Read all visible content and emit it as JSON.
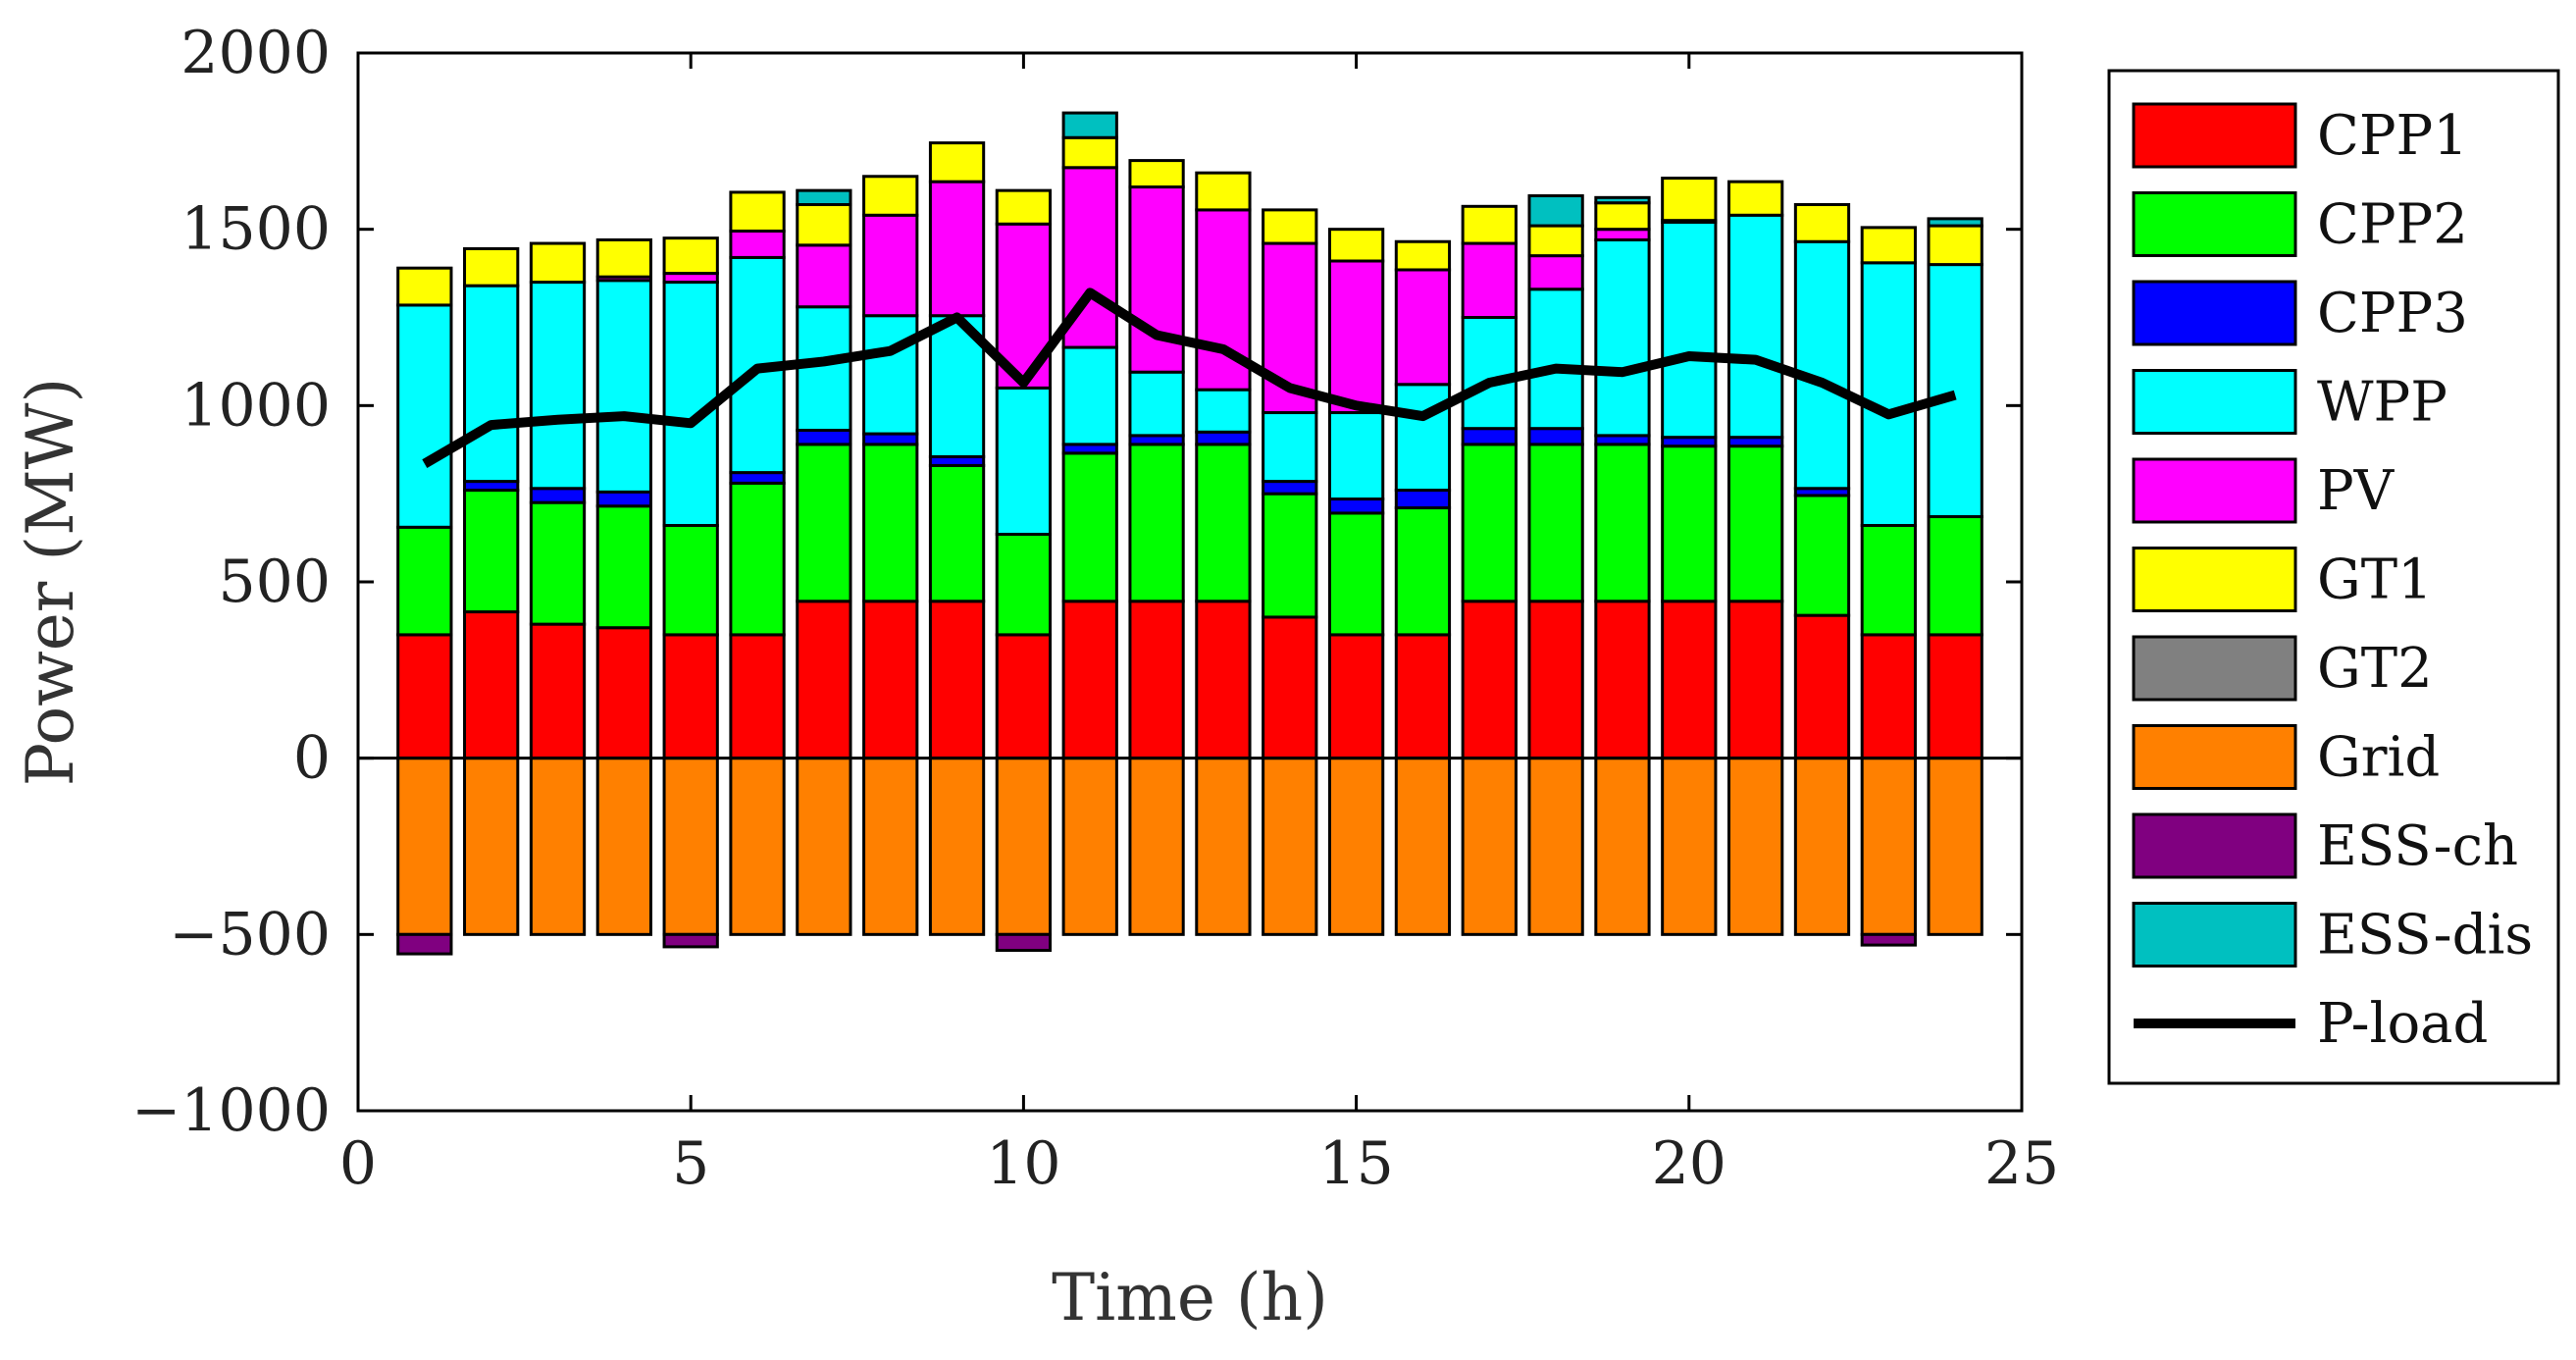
{
  "chart_data": {
    "type": "bar",
    "stacked": true,
    "title": "",
    "xlabel": "Time (h)",
    "ylabel": "Power (MW)",
    "xlim": [
      0,
      25
    ],
    "ylim": [
      -1000,
      2000
    ],
    "xticks": [
      "0",
      "5",
      "10",
      "15",
      "20",
      "25"
    ],
    "yticks": [
      "−1000",
      "−500",
      "0",
      "500",
      "1000",
      "1500",
      "2000"
    ],
    "legend_position": "outside-right",
    "categories": [
      1,
      2,
      3,
      4,
      5,
      6,
      7,
      8,
      9,
      10,
      11,
      12,
      13,
      14,
      15,
      16,
      17,
      18,
      19,
      20,
      21,
      22,
      23,
      24
    ],
    "series": [
      {
        "name": "CPP1",
        "color": "#ff0000",
        "values": [
          350,
          415,
          380,
          370,
          350,
          350,
          445,
          445,
          445,
          350,
          445,
          445,
          445,
          400,
          350,
          350,
          445,
          445,
          445,
          445,
          445,
          405,
          350,
          350
        ]
      },
      {
        "name": "CPP2",
        "color": "#00ff00",
        "values": [
          305,
          345,
          345,
          345,
          310,
          430,
          445,
          445,
          385,
          285,
          420,
          445,
          445,
          350,
          345,
          360,
          445,
          445,
          445,
          440,
          440,
          340,
          310,
          335
        ]
      },
      {
        "name": "CPP3",
        "color": "#0000ff",
        "values": [
          0,
          25,
          40,
          40,
          0,
          30,
          40,
          30,
          25,
          0,
          25,
          25,
          35,
          35,
          40,
          50,
          45,
          45,
          25,
          25,
          25,
          20,
          0,
          0
        ]
      },
      {
        "name": "WPP",
        "color": "#00ffff",
        "values": [
          630,
          555,
          585,
          600,
          690,
          610,
          350,
          335,
          400,
          415,
          275,
          180,
          120,
          195,
          245,
          300,
          315,
          395,
          555,
          610,
          630,
          700,
          745,
          715
        ]
      },
      {
        "name": "PV",
        "color": "#ff00ff",
        "values": [
          0,
          0,
          0,
          10,
          25,
          75,
          175,
          285,
          380,
          465,
          510,
          525,
          510,
          480,
          430,
          325,
          210,
          95,
          30,
          5,
          0,
          0,
          0,
          0
        ]
      },
      {
        "name": "GT1",
        "color": "#ffff00",
        "values": [
          105,
          105,
          110,
          105,
          100,
          110,
          115,
          110,
          110,
          95,
          85,
          75,
          105,
          95,
          90,
          80,
          105,
          85,
          75,
          120,
          95,
          105,
          100,
          110
        ]
      },
      {
        "name": "GT2",
        "color": "#808080",
        "values": [
          0,
          0,
          0,
          0,
          0,
          0,
          0,
          0,
          0,
          0,
          0,
          0,
          0,
          0,
          0,
          0,
          0,
          0,
          0,
          0,
          0,
          0,
          0,
          0
        ]
      },
      {
        "name": "Grid",
        "color": "#ff8000",
        "values": [
          -500,
          -500,
          -500,
          -500,
          -500,
          -500,
          -500,
          -500,
          -500,
          -500,
          -500,
          -500,
          -500,
          -500,
          -500,
          -500,
          -500,
          -500,
          -500,
          -500,
          -500,
          -500,
          -500,
          -500
        ]
      },
      {
        "name": "ESS-ch",
        "color": "#800080",
        "values": [
          -55,
          0,
          0,
          0,
          -35,
          0,
          0,
          0,
          0,
          -45,
          0,
          0,
          0,
          0,
          0,
          0,
          0,
          0,
          0,
          0,
          0,
          0,
          -30,
          0
        ]
      },
      {
        "name": "ESS-dis",
        "color": "#00c0c0",
        "values": [
          0,
          0,
          0,
          0,
          0,
          0,
          40,
          0,
          0,
          0,
          70,
          0,
          0,
          0,
          0,
          0,
          0,
          85,
          15,
          0,
          0,
          0,
          0,
          20
        ]
      }
    ],
    "line_series": {
      "name": "P-load",
      "color": "#000000",
      "x": [
        1,
        2,
        3,
        4,
        5,
        6,
        7,
        8,
        9,
        10,
        11,
        12,
        13,
        14,
        15,
        16,
        17,
        18,
        19,
        20,
        21,
        22,
        23,
        24
      ],
      "values": [
        835,
        945,
        960,
        970,
        950,
        1105,
        1125,
        1155,
        1250,
        1065,
        1320,
        1200,
        1160,
        1050,
        1000,
        970,
        1065,
        1105,
        1095,
        1140,
        1130,
        1065,
        975,
        1030
      ]
    }
  }
}
